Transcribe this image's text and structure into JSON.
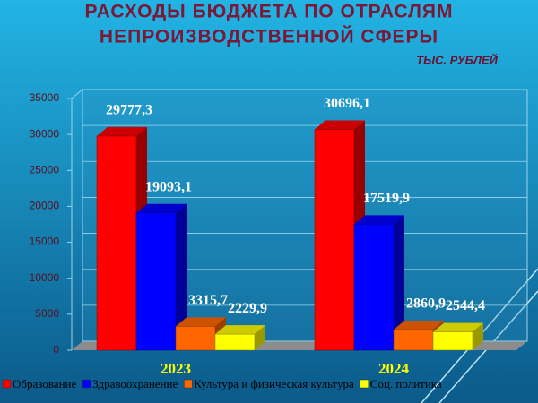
{
  "chart_data": {
    "type": "bar3d",
    "title": [
      "РАСХОДЫ  БЮДЖЕТА  ПО  ОТРАСЛЯМ",
      "НЕПРОИЗВОДСТВЕННОЙ  СФЕРЫ"
    ],
    "subtitle": "ТЫС. РУБЛЕЙ",
    "categories": [
      "2023",
      "2024"
    ],
    "series": [
      {
        "name": "Образование",
        "color": "#ff0000",
        "values": [
          29777.3,
          30696.1
        ],
        "value_labels": [
          "29777,3",
          "30696,1"
        ]
      },
      {
        "name": "Здравоохранение",
        "color": "#0000ff",
        "values": [
          19093.1,
          17519.9
        ],
        "value_labels": [
          "19093,1",
          "17519,9"
        ]
      },
      {
        "name": "Культура и физическая культура",
        "color": "#ff6600",
        "values": [
          3315.7,
          2860.9
        ],
        "value_labels": [
          "3315,7",
          "2860,9"
        ]
      },
      {
        "name": "Соц. политика",
        "color": "#ffff00",
        "values": [
          2229.9,
          2544.4
        ],
        "value_labels": [
          "2229,9",
          "2544,4"
        ]
      }
    ],
    "ylim": [
      0,
      35000
    ],
    "yticks": [
      0,
      5000,
      10000,
      15000,
      20000,
      25000,
      30000,
      35000
    ],
    "grid": true
  }
}
